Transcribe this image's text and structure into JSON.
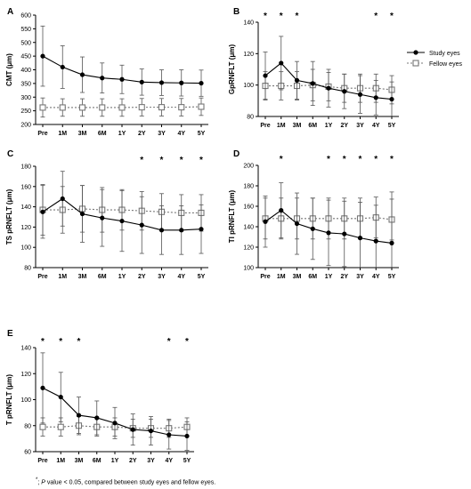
{
  "footnote": {
    "star": "*",
    "p": "P",
    "text": " value < 0.05, compared between study eyes and fellow eyes."
  },
  "legend": {
    "study": "Study eyes",
    "fellow": "Fellow eyes"
  },
  "colors": {
    "study": "#000000",
    "fellow": "#777777",
    "error_bar": "#555555"
  },
  "chart_data": [
    {
      "type": "line",
      "panel": "A",
      "ylabel": "CMT (μm)",
      "categories": [
        "Pre",
        "1M",
        "3M",
        "6M",
        "1Y",
        "2Y",
        "3Y",
        "4Y",
        "5Y"
      ],
      "ylim": [
        200,
        600
      ],
      "yticks": [
        200,
        250,
        300,
        350,
        400,
        450,
        500,
        550,
        600
      ],
      "significant": [],
      "series": [
        {
          "name": "Study eyes",
          "marker": "filled-circle",
          "line": "solid",
          "values": [
            450,
            410,
            382,
            370,
            365,
            355,
            353,
            352,
            351
          ],
          "error": [
            110,
            78,
            65,
            55,
            52,
            48,
            47,
            48,
            48
          ]
        },
        {
          "name": "Fellow eyes",
          "marker": "open-square",
          "line": "dashed",
          "values": [
            262,
            262,
            262,
            262,
            262,
            263,
            263,
            263,
            265
          ],
          "error": [
            35,
            32,
            32,
            32,
            32,
            32,
            32,
            32,
            32
          ]
        }
      ]
    },
    {
      "type": "line",
      "panel": "B",
      "ylabel": "GpRNFLT (μm)",
      "categories": [
        "Pre",
        "1M",
        "3M",
        "6M",
        "1Y",
        "2Y",
        "3Y",
        "4Y",
        "5Y"
      ],
      "ylim": [
        80,
        140
      ],
      "yticks": [
        80,
        100,
        120,
        140
      ],
      "significant": [
        0,
        1,
        2,
        7,
        8
      ],
      "series": [
        {
          "name": "Study eyes",
          "marker": "filled-circle",
          "line": "solid",
          "values": [
            106,
            114,
            103,
            101,
            98,
            96,
            94,
            92,
            91
          ],
          "error": [
            15,
            17,
            12,
            14,
            12,
            11,
            12,
            11,
            11
          ]
        },
        {
          "name": "Fellow eyes",
          "marker": "open-square",
          "line": "dashed",
          "values": [
            99.5,
            99.5,
            99.5,
            100,
            99,
            98,
            98,
            98,
            97
          ],
          "error": [
            9,
            9,
            9,
            10,
            9,
            9,
            9,
            9,
            9
          ]
        }
      ]
    },
    {
      "type": "line",
      "panel": "C",
      "ylabel": "TS pRNFLT (μm)",
      "categories": [
        "Pre",
        "1M",
        "3M",
        "6M",
        "1Y",
        "2Y",
        "3Y",
        "4Y",
        "5Y"
      ],
      "ylim": [
        80,
        180
      ],
      "yticks": [
        80,
        100,
        120,
        140,
        160,
        180
      ],
      "significant": [
        5,
        6,
        7,
        8
      ],
      "series": [
        {
          "name": "Study eyes",
          "marker": "filled-circle",
          "line": "solid",
          "values": [
            135,
            148,
            133,
            129,
            126,
            122,
            117,
            117,
            118
          ],
          "error": [
            26,
            27,
            28,
            28,
            30,
            28,
            24,
            24,
            24
          ]
        },
        {
          "name": "Fellow eyes",
          "marker": "open-square",
          "line": "dashed",
          "values": [
            137,
            137,
            138,
            137,
            137,
            136,
            135,
            134,
            134
          ],
          "error": [
            25,
            23,
            23,
            22,
            20,
            19,
            18,
            18,
            18
          ]
        }
      ]
    },
    {
      "type": "line",
      "panel": "D",
      "ylabel": "TI pRNFLT (μm)",
      "categories": [
        "Pre",
        "1M",
        "3M",
        "6M",
        "1Y",
        "2Y",
        "3Y",
        "4Y",
        "5Y"
      ],
      "ylim": [
        100,
        200
      ],
      "yticks": [
        100,
        120,
        140,
        160,
        180,
        200
      ],
      "significant": [
        1,
        4,
        5,
        6,
        7,
        8
      ],
      "series": [
        {
          "name": "Study eyes",
          "marker": "filled-circle",
          "line": "solid",
          "values": [
            145,
            156,
            143,
            138,
            134,
            133,
            129,
            126,
            124
          ],
          "error": [
            25,
            27,
            30,
            30,
            32,
            32,
            35,
            35,
            50
          ]
        },
        {
          "name": "Fellow eyes",
          "marker": "open-square",
          "line": "dashed",
          "values": [
            148,
            148,
            148,
            148,
            148,
            148,
            148,
            149,
            147
          ],
          "error": [
            20,
            20,
            20,
            20,
            20,
            20,
            20,
            20,
            20
          ]
        }
      ]
    },
    {
      "type": "line",
      "panel": "E",
      "ylabel": "T pRNFLT (μm)",
      "categories": [
        "Pre",
        "1M",
        "3M",
        "6M",
        "1Y",
        "2Y",
        "3Y",
        "4Y",
        "5Y"
      ],
      "ylim": [
        60,
        140
      ],
      "yticks": [
        60,
        80,
        100,
        120,
        140
      ],
      "significant": [
        0,
        1,
        2,
        7,
        8
      ],
      "series": [
        {
          "name": "Study eyes",
          "marker": "filled-circle",
          "line": "solid",
          "values": [
            109,
            102,
            88,
            86,
            82,
            77,
            76,
            73,
            72
          ],
          "error": [
            27,
            19,
            14,
            13,
            12,
            12,
            11,
            11,
            11
          ]
        },
        {
          "name": "Fellow eyes",
          "marker": "open-square",
          "line": "dashed",
          "values": [
            79,
            79,
            80,
            79,
            79,
            78,
            78,
            78,
            79
          ],
          "error": [
            7,
            7,
            7,
            7,
            7,
            7,
            7,
            7,
            7
          ]
        }
      ]
    }
  ]
}
